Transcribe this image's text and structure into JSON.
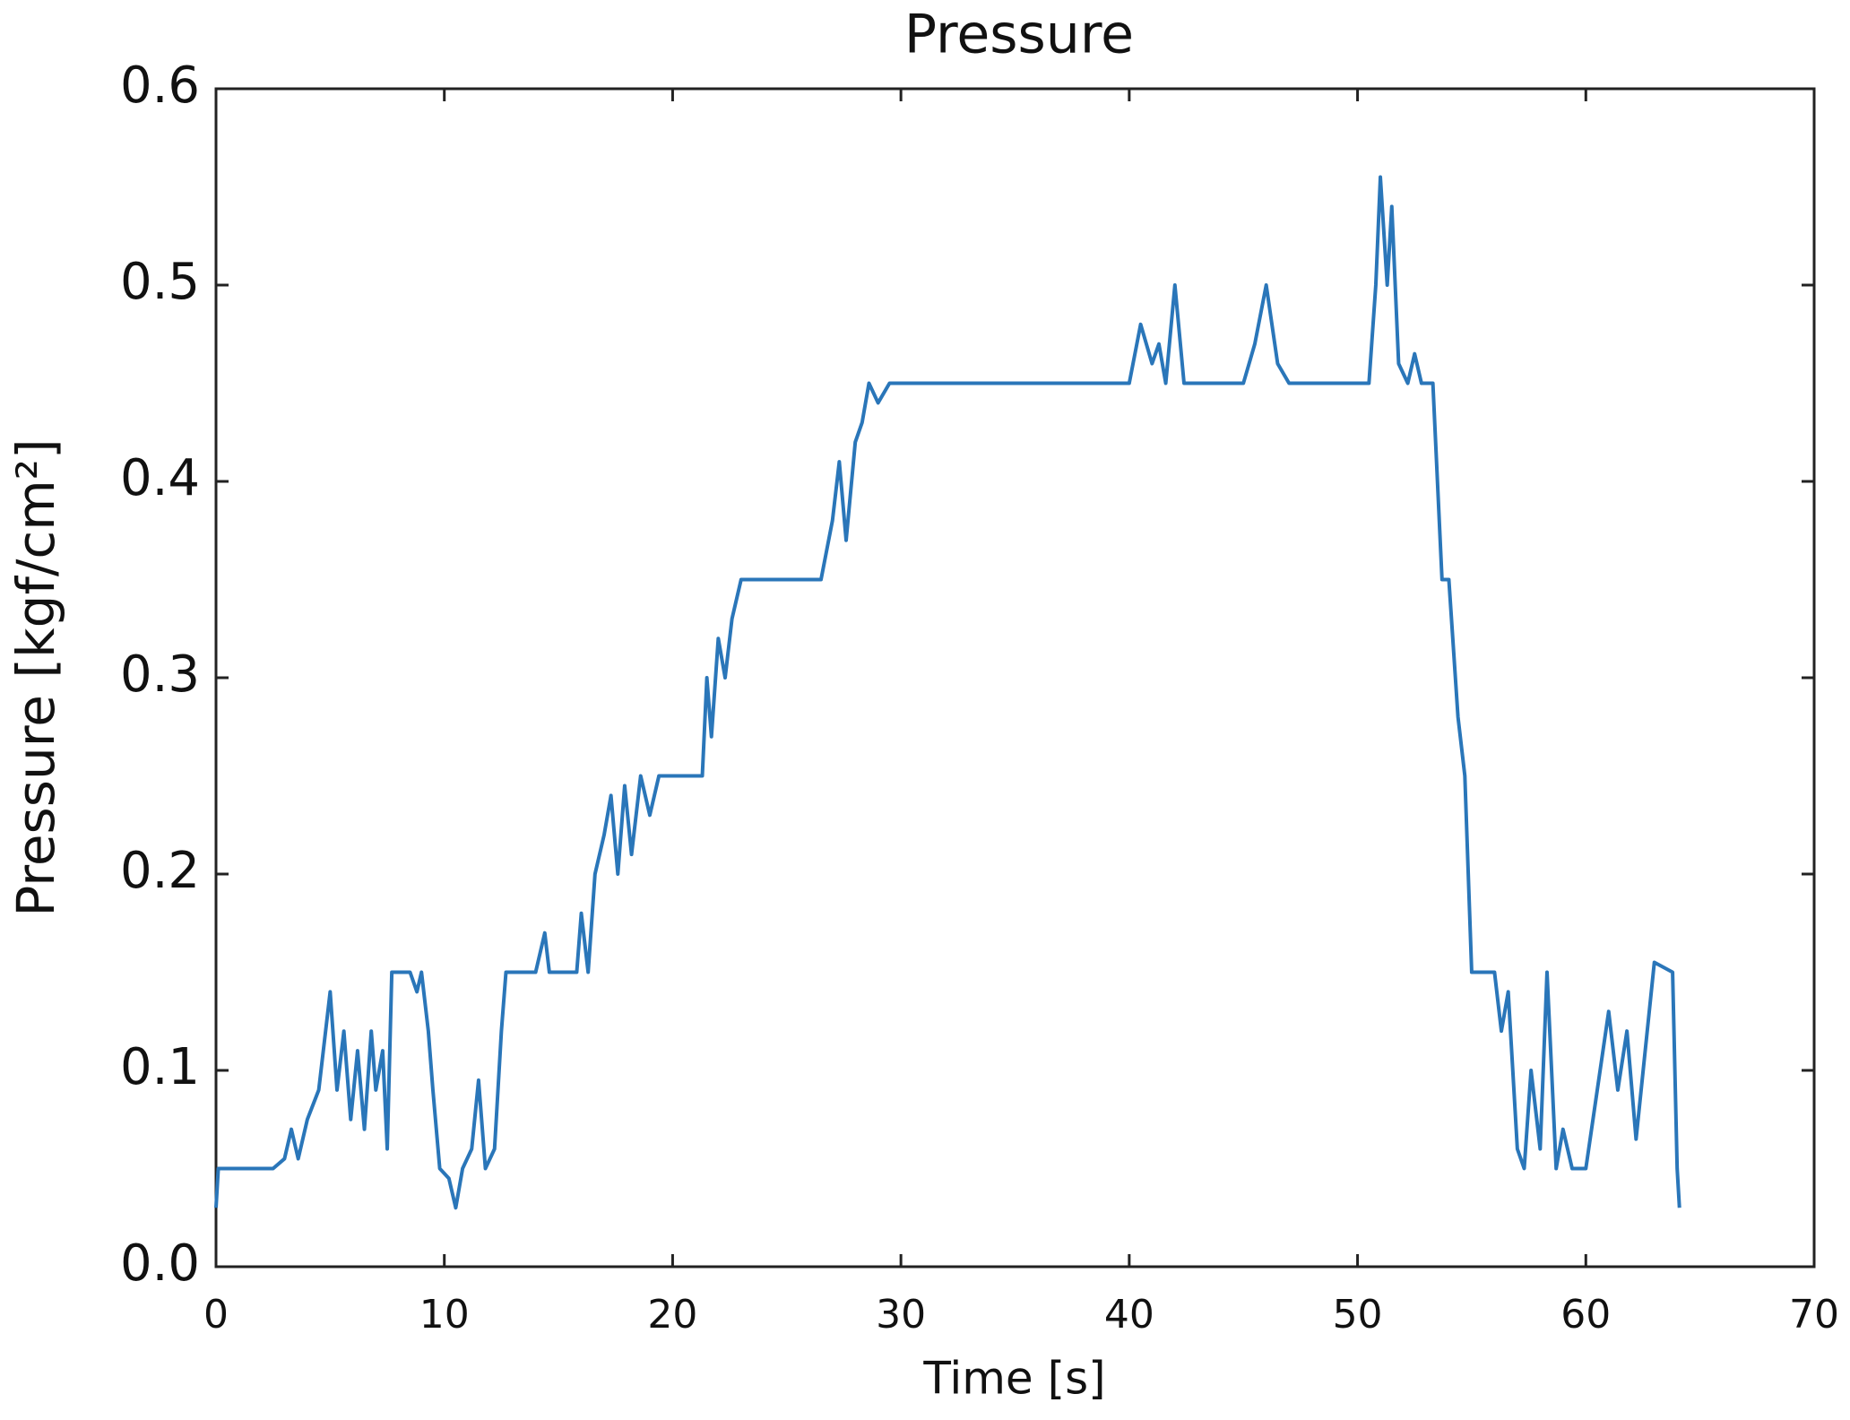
{
  "chart_data": {
    "type": "line",
    "title": "Pressure",
    "x_label": "Time [s]",
    "y_label": "Pressure [kgf/cm²]",
    "xlim": [
      0,
      70
    ],
    "ylim": [
      0,
      0.6
    ],
    "xticks": [
      0,
      10,
      20,
      30,
      40,
      50,
      60,
      70
    ],
    "yticks": [
      {
        "value": 0,
        "label": "0.0"
      },
      0.1,
      0.2,
      0.3,
      0.4,
      0.5,
      0.6
    ],
    "grid": false,
    "series": [
      {
        "name": "Pressure",
        "color": "#2a76b9",
        "x": [
          0,
          0.1,
          2.5,
          3,
          3.3,
          3.6,
          4,
          4.5,
          5,
          5.3,
          5.6,
          5.9,
          6.2,
          6.5,
          6.8,
          7,
          7.3,
          7.5,
          7.7,
          8.5,
          8.8,
          9,
          9.3,
          9.5,
          9.8,
          10.2,
          10.5,
          10.8,
          11.2,
          11.5,
          11.8,
          12.2,
          12.5,
          12.7,
          14,
          14.4,
          14.6,
          15.8,
          16,
          16.3,
          16.6,
          17,
          17.3,
          17.6,
          17.9,
          18.2,
          18.6,
          19,
          19.4,
          21.3,
          21.5,
          21.7,
          22,
          22.3,
          22.6,
          23,
          26.5,
          27,
          27.3,
          27.6,
          28,
          28.3,
          28.6,
          29,
          29.5,
          40,
          40.5,
          41,
          41.3,
          41.6,
          42,
          42.4,
          45,
          45.5,
          46,
          46.5,
          47,
          50.5,
          50.8,
          51,
          51.3,
          51.5,
          51.8,
          52.2,
          52.5,
          52.8,
          53.3,
          53.7,
          54,
          54.4,
          54.7,
          55,
          56,
          56.3,
          56.6,
          57,
          57.3,
          57.6,
          58,
          58.3,
          58.7,
          59,
          59.4,
          60,
          60.5,
          61,
          61.4,
          61.8,
          62.2,
          62.6,
          63,
          63.8,
          64,
          64.1
        ],
        "values": [
          0.03,
          0.05,
          0.05,
          0.055,
          0.07,
          0.055,
          0.075,
          0.09,
          0.14,
          0.09,
          0.12,
          0.075,
          0.11,
          0.07,
          0.12,
          0.09,
          0.11,
          0.06,
          0.15,
          0.15,
          0.14,
          0.15,
          0.12,
          0.09,
          0.05,
          0.045,
          0.03,
          0.05,
          0.06,
          0.095,
          0.05,
          0.06,
          0.12,
          0.15,
          0.15,
          0.17,
          0.15,
          0.15,
          0.18,
          0.15,
          0.2,
          0.22,
          0.24,
          0.2,
          0.245,
          0.21,
          0.25,
          0.23,
          0.25,
          0.25,
          0.3,
          0.27,
          0.32,
          0.3,
          0.33,
          0.35,
          0.35,
          0.38,
          0.41,
          0.37,
          0.42,
          0.43,
          0.45,
          0.44,
          0.45,
          0.45,
          0.48,
          0.46,
          0.47,
          0.45,
          0.5,
          0.45,
          0.45,
          0.47,
          0.5,
          0.46,
          0.45,
          0.45,
          0.5,
          0.555,
          0.5,
          0.54,
          0.46,
          0.45,
          0.465,
          0.45,
          0.45,
          0.35,
          0.35,
          0.28,
          0.25,
          0.15,
          0.15,
          0.12,
          0.14,
          0.06,
          0.05,
          0.1,
          0.06,
          0.15,
          0.05,
          0.07,
          0.05,
          0.05,
          0.09,
          0.13,
          0.09,
          0.12,
          0.065,
          0.11,
          0.155,
          0.15,
          0.05,
          0.03
        ]
      }
    ]
  }
}
